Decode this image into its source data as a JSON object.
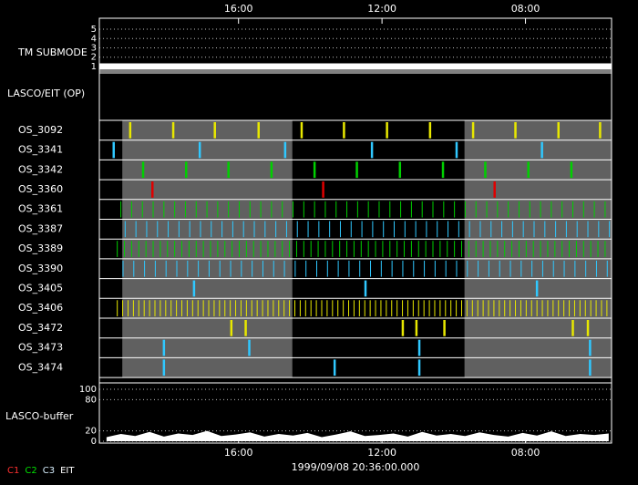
{
  "chart_data": {
    "type": "timeline",
    "xlim": [
      0,
      71.4
    ],
    "xticks": [
      {
        "value": 19.4,
        "label": "16:00"
      },
      {
        "value": 39.4,
        "label": "12:00"
      },
      {
        "value": 59.4,
        "label": "08:00"
      }
    ],
    "footer": "1999/09/08 20:36:00.000",
    "shaded": [
      [
        3.2,
        26.9
      ],
      [
        50.9,
        71.4
      ]
    ],
    "submode": {
      "label": "TM SUBMODE",
      "ylim": [
        0.8,
        5.2
      ],
      "yticks": [
        1,
        2,
        3,
        4,
        5
      ],
      "x": [
        0,
        71.4
      ],
      "values": [
        1,
        1
      ],
      "color": "#ffffff"
    },
    "group_label": "LASCO/EIT (OP)",
    "rows": [
      {
        "name": "OS_3092",
        "color": "#e8e800",
        "x": [
          4.3,
          10.3,
          16.1,
          22.2,
          28.2,
          34.1,
          40.1,
          46.1,
          52.1,
          58.0,
          64.0,
          69.8
        ]
      },
      {
        "name": "OS_3341",
        "color": "#30c8ff",
        "x": [
          2.0,
          14.0,
          25.9,
          38.0,
          49.8,
          61.7
        ]
      },
      {
        "name": "OS_3342",
        "color": "#00d000",
        "x": [
          6.1,
          12.1,
          18.0,
          24.0,
          30.0,
          35.9,
          41.9,
          47.9,
          53.8,
          59.8,
          65.8
        ]
      },
      {
        "name": "OS_3360",
        "color": "#e00000",
        "x": [
          7.4,
          31.2,
          55.1
        ]
      },
      {
        "name": "OS_3361",
        "color": "#00d000",
        "x": [
          3,
          4.5,
          6,
          7.5,
          9,
          10.5,
          12,
          13.5,
          15,
          16.5,
          18,
          19.5,
          21,
          22.5,
          24,
          25.5,
          27,
          28.5,
          30,
          31.5,
          33,
          34.5,
          36,
          37.5,
          39,
          40.5,
          42,
          43.5,
          45,
          46.5,
          48,
          49.5,
          51,
          52.5,
          54,
          55.5,
          57,
          58.5,
          60,
          61.5,
          63,
          64.5,
          66,
          67.5,
          69,
          70.5
        ]
      },
      {
        "name": "OS_3387",
        "color": "#30c8ff",
        "x": [
          3.6,
          5.1,
          6.6,
          8.1,
          9.6,
          11.1,
          12.6,
          14.1,
          15.6,
          17.1,
          18.6,
          20.1,
          21.6,
          23.1,
          24.6,
          26.1,
          27.6,
          29.1,
          30.6,
          32.1,
          33.6,
          35.1,
          36.6,
          38.1,
          39.6,
          41.1,
          42.6,
          44.1,
          45.6,
          47.1,
          48.6,
          50.1,
          51.6,
          53.1,
          54.6,
          56.1,
          57.6,
          59.1,
          60.6,
          62.1,
          63.6,
          65.1,
          66.6,
          68.1,
          69.6,
          71.1
        ]
      },
      {
        "name": "OS_3389",
        "color": "#00d000",
        "x": [
          2.5,
          3.5,
          4.5,
          5.5,
          6.5,
          7.5,
          8.5,
          9.5,
          10.5,
          11.5,
          12.5,
          13.5,
          14.5,
          15.5,
          16.5,
          17.5,
          18.5,
          19.5,
          20.5,
          21.5,
          22.5,
          23.5,
          24.5,
          25.5,
          26.5,
          27.5,
          28.5,
          29.5,
          30.5,
          31.5,
          32.5,
          33.5,
          34.5,
          35.5,
          36.5,
          37.5,
          38.5,
          39.5,
          40.5,
          41.5,
          42.5,
          43.5,
          44.5,
          45.5,
          46.5,
          47.5,
          48.5,
          49.5,
          50.5,
          51.5,
          52.5,
          53.5,
          54.5,
          55.5,
          56.5,
          57.5,
          58.5,
          59.5,
          60.5,
          61.5,
          62.5,
          63.5,
          64.5,
          65.5,
          66.5,
          67.5,
          68.5,
          69.5,
          70.5
        ]
      },
      {
        "name": "OS_3390",
        "color": "#30c8ff",
        "x": [
          3.3,
          4.8,
          6.3,
          7.8,
          9.3,
          10.8,
          12.3,
          13.8,
          15.3,
          16.8,
          18.3,
          19.8,
          21.3,
          22.8,
          24.3,
          25.8,
          27.3,
          28.8,
          30.3,
          31.8,
          33.3,
          34.8,
          36.3,
          37.8,
          39.3,
          40.8,
          42.3,
          43.8,
          45.3,
          46.8,
          48.3,
          49.8,
          51.3,
          52.8,
          54.3,
          55.8,
          57.3,
          58.8,
          60.3,
          61.8,
          63.3,
          64.8,
          66.3,
          67.8,
          69.3,
          70.8
        ]
      },
      {
        "name": "OS_3405",
        "color": "#30c8ff",
        "x": [
          13.2,
          37.1,
          61.0
        ]
      },
      {
        "name": "OS_3406",
        "color": "#e8e800",
        "x": [
          2.5,
          3.25,
          4,
          4.75,
          5.5,
          6.25,
          7,
          7.75,
          8.5,
          9.25,
          10,
          10.75,
          11.5,
          12.25,
          13,
          13.75,
          14.5,
          15.25,
          16,
          16.75,
          17.5,
          18.25,
          19,
          19.75,
          20.5,
          21.25,
          22,
          22.75,
          23.5,
          24.25,
          25,
          25.75,
          26.5,
          27.25,
          28,
          28.75,
          29.5,
          30.25,
          31,
          31.75,
          32.5,
          33.25,
          34,
          34.75,
          35.5,
          36.25,
          37,
          37.75,
          38.5,
          39.25,
          40,
          40.75,
          41.5,
          42.25,
          43,
          43.75,
          44.5,
          45.25,
          46,
          46.75,
          47.5,
          48.25,
          49,
          49.75,
          50.5,
          51.25,
          52,
          52.75,
          53.5,
          54.25,
          55,
          55.75,
          56.5,
          57.25,
          58,
          58.75,
          59.5,
          60.25,
          61,
          61.75,
          62.5,
          63.25,
          64,
          64.75,
          65.5,
          66.25,
          67,
          67.75,
          68.5,
          69.25,
          70,
          70.75
        ]
      },
      {
        "name": "OS_3472",
        "color": "#e8e800",
        "x": [
          18.4,
          20.4,
          42.3,
          44.2,
          48.1,
          66.0,
          68.1
        ]
      },
      {
        "name": "OS_3473",
        "color": "#30c8ff",
        "x": [
          9.0,
          20.9,
          44.6,
          68.4
        ]
      },
      {
        "name": "OS_3474",
        "color": "#30c8ff",
        "x": [
          9.0,
          32.8,
          44.6,
          68.4
        ]
      }
    ],
    "buffer": {
      "label": "LASCO-buffer",
      "ylim": [
        0,
        100
      ],
      "yticks": [
        0,
        20,
        80,
        100
      ],
      "color": "#ffffff",
      "x": [
        1,
        3,
        5,
        7,
        9,
        11,
        13,
        15,
        17,
        19,
        21,
        23,
        25,
        27,
        29,
        31,
        33,
        35,
        37,
        39,
        41,
        43,
        45,
        47,
        49,
        51,
        53,
        55,
        57,
        59,
        61,
        63,
        65,
        67,
        69,
        71
      ],
      "values": [
        8,
        14,
        10,
        18,
        9,
        15,
        12,
        20,
        10,
        13,
        17,
        9,
        14,
        11,
        16,
        8,
        13,
        19,
        10,
        12,
        15,
        9,
        18,
        11,
        14,
        10,
        17,
        12,
        9,
        16,
        11,
        19,
        10,
        14,
        12,
        15
      ]
    },
    "legend": [
      {
        "name": "C1",
        "color": "#ff3030"
      },
      {
        "name": "C2",
        "color": "#00e000"
      },
      {
        "name": "C3",
        "color": "#d8f0ff"
      },
      {
        "name": "EIT",
        "color": "#ffffff"
      }
    ]
  }
}
